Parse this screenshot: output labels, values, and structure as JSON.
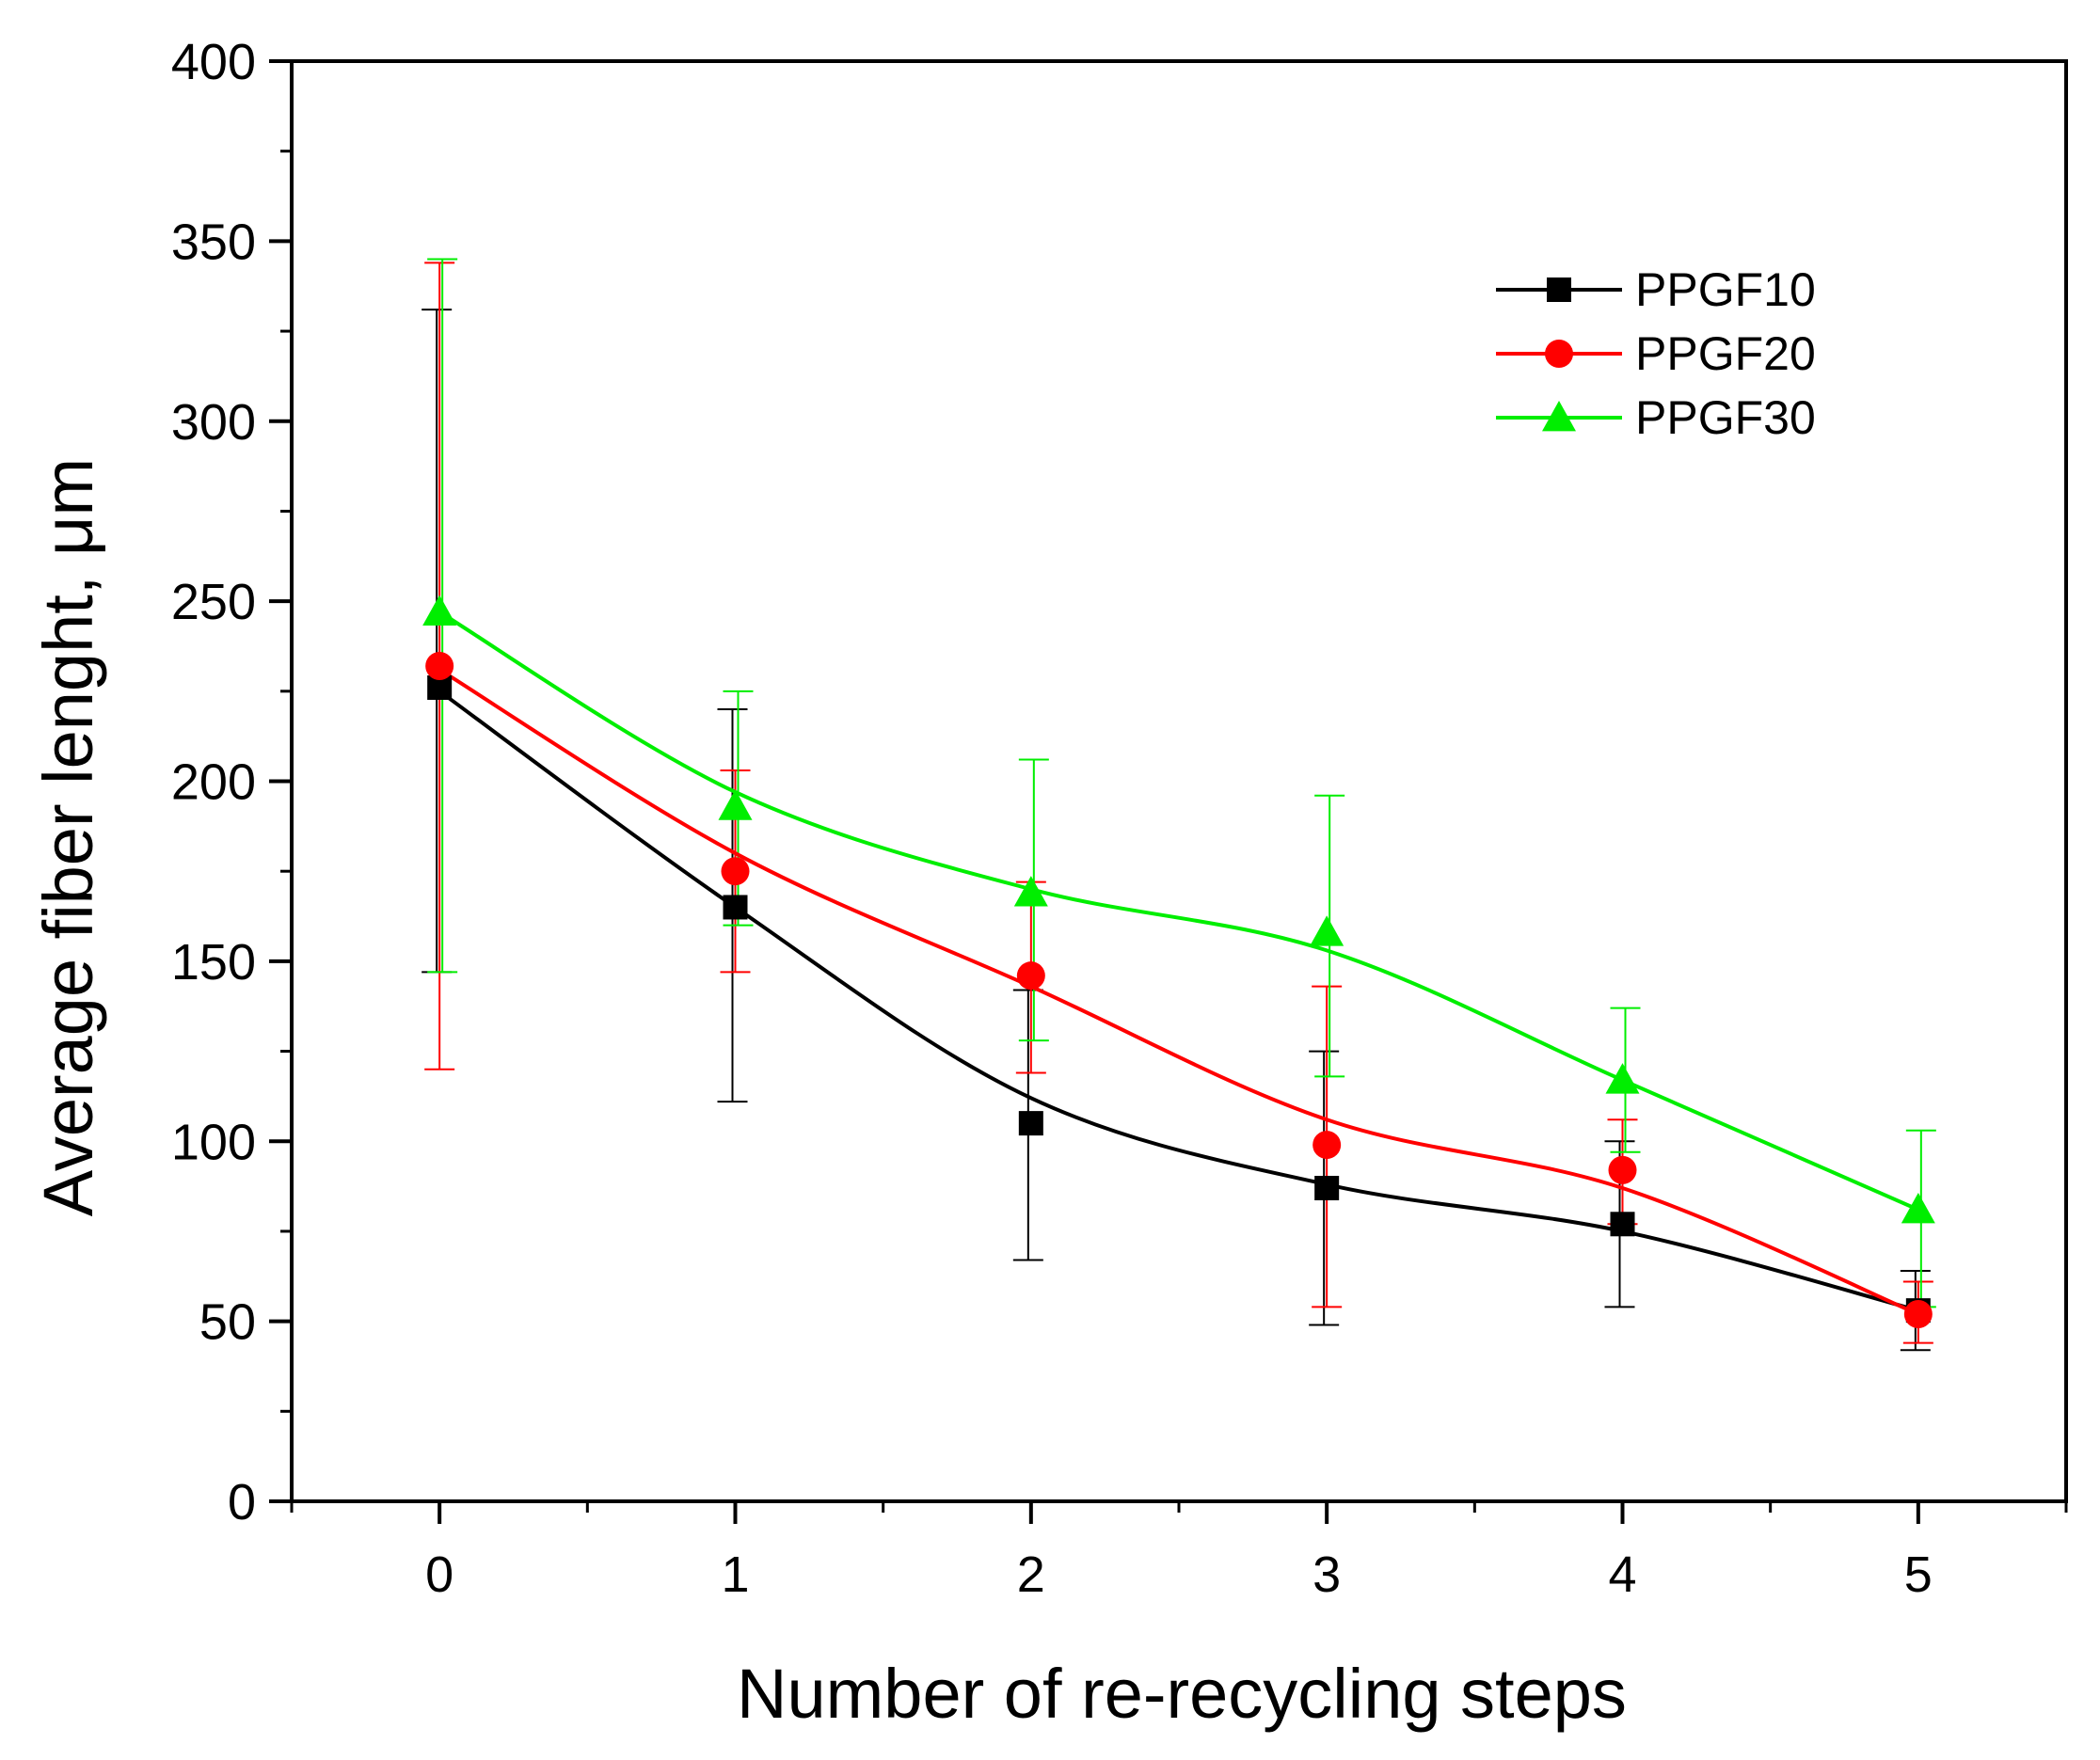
{
  "chart_data": {
    "type": "line",
    "title": "",
    "xlabel": "Number of re-recycling steps",
    "ylabel": "Average fiber lenght, μm",
    "xlim": [
      -0.5,
      5.5
    ],
    "ylim": [
      0,
      400
    ],
    "x_ticks": [
      0,
      1,
      2,
      3,
      4,
      5
    ],
    "x_tick_labels": [
      "0",
      "1",
      "2",
      "3",
      "4",
      "5"
    ],
    "y_ticks": [
      0,
      50,
      100,
      150,
      200,
      250,
      300,
      350,
      400
    ],
    "y_tick_labels": [
      "0",
      "50",
      "100",
      "150",
      "200",
      "250",
      "300",
      "350",
      "400"
    ],
    "grid": false,
    "legend_position": "top-right",
    "x": [
      0,
      1,
      2,
      3,
      4,
      5
    ],
    "series": [
      {
        "name": "PPGF10",
        "color": "#000000",
        "marker": "square",
        "values": [
          226,
          165,
          105,
          87,
          77,
          53
        ],
        "error_low": [
          147,
          111,
          67,
          49,
          54,
          42
        ],
        "error_high": [
          331,
          220,
          142,
          125,
          100,
          64
        ],
        "fit": [
          225,
          165,
          112,
          88,
          75,
          53
        ]
      },
      {
        "name": "PPGF20",
        "color": "#ff0000",
        "marker": "circle",
        "values": [
          232,
          175,
          146,
          99,
          92,
          52
        ],
        "error_low": [
          120,
          147,
          119,
          54,
          77,
          44
        ],
        "error_high": [
          344,
          203,
          172,
          143,
          106,
          61
        ],
        "fit": [
          231,
          180,
          143,
          106,
          87,
          52
        ]
      },
      {
        "name": "PPGF30",
        "color": "#00ee00",
        "marker": "triangle",
        "values": [
          247,
          193,
          169,
          158,
          117,
          81
        ],
        "error_low": [
          147,
          160,
          128,
          118,
          97,
          54
        ],
        "error_high": [
          345,
          225,
          206,
          196,
          137,
          103
        ],
        "fit": [
          247,
          197,
          170,
          153,
          117,
          81
        ]
      }
    ]
  }
}
